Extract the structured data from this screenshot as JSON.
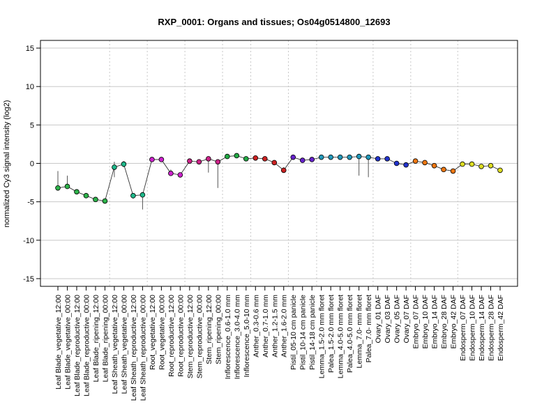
{
  "chart_data": {
    "type": "line",
    "title": "RXP_0001: Organs and tissues; Os04g0514800_12693",
    "ylabel": "normalized Cy3 signal intensity (log2)",
    "xlabel": "",
    "ylim": [
      -16,
      16
    ],
    "yticks": [
      -15,
      -10,
      -5,
      0,
      5,
      10,
      15
    ],
    "grid": true,
    "categories": [
      "Leaf Blade_vegetative_12:00",
      "Leaf Blade_vegetative_00:00",
      "Leaf Blade_reproductive_12:00",
      "Leaf Blade_reproductive_00:00",
      "Leaf Blade_ripening_12:00",
      "Leaf Blade_ripening_00:00",
      "Leaf Sheath_vegetative_12:00",
      "Leaf Sheath_vegetative_00:00",
      "Leaf Sheath_reproductive_12:00",
      "Leaf Sheath_reproductive_00:00",
      "Root_vegetative_12:00",
      "Root_vegetative_00:00",
      "Root_reproductive_12:00",
      "Root_reproductive_00:00",
      "Stem_reproductive_12:00",
      "Stem_reproductive_00:00",
      "Stem_ripening_12:00",
      "Stem_ripening_00:00",
      "Inflorescence_0.6-1.0 mm",
      "Inflorescence_3.0-4.0 mm",
      "Inflorescence_5.0-10 mm",
      "Anther_0.3-0.6 mm",
      "Anther_0.7-1.0 mm",
      "Anther_1.2-1.5 mm",
      "Anther_1.6-2.0 mm",
      "Pistil_05-10 cm panicle",
      "Pistil_10-14 cm panicle",
      "Pistil_14-18 cm panicle",
      "Lemma_1.5-2.0 mm floret",
      "Palea_1.5-2.0 mm floret",
      "Lemma_4.0-5.0 mm floret",
      "Palea_4.0-5.0 mm floret",
      "Lemma_7.0- mm floret",
      "Palea_7.0- mm floret",
      "Ovary_01 DAF",
      "Ovary_03 DAF",
      "Ovary_05 DAF",
      "Ovary_07 DAF",
      "Embryo_07 DAF",
      "Embryo_10 DAF",
      "Embryo_14 DAF",
      "Embryo_28 DAF",
      "Embryo_42 DAF",
      "Endosperm_07 DAF",
      "Endosperm_10 DAF",
      "Endosperm_14 DAF",
      "Endosperm_28 DAF",
      "Endosperm_42 DAF"
    ],
    "values": [
      -3.2,
      -3.0,
      -3.7,
      -4.2,
      -4.7,
      -4.9,
      -0.5,
      -0.1,
      -4.2,
      -4.1,
      0.5,
      0.5,
      -1.3,
      -1.5,
      0.3,
      0.2,
      0.6,
      0.2,
      0.9,
      1.0,
      0.6,
      0.7,
      0.6,
      0.1,
      -0.9,
      0.8,
      0.4,
      0.5,
      0.8,
      0.8,
      0.8,
      0.8,
      0.9,
      0.8,
      0.6,
      0.6,
      0.0,
      -0.2,
      0.3,
      0.1,
      -0.3,
      -0.8,
      -1.0,
      -0.1,
      -0.1,
      -0.4,
      -0.3,
      -0.9
    ],
    "err_low": [
      -1.0,
      -1.6,
      -3.7,
      -4.2,
      -4.7,
      -4.9,
      0.2,
      0.3,
      -4.2,
      -4.1,
      0.5,
      0.5,
      -0.8,
      -1.2,
      0.3,
      0.2,
      0.9,
      0.5,
      0.9,
      1.0,
      0.6,
      0.7,
      0.6,
      0.2,
      -0.5,
      0.9,
      0.4,
      0.5,
      0.9,
      0.9,
      0.8,
      0.8,
      0.9,
      0.9,
      0.6,
      0.6,
      0.0,
      -0.2,
      0.5,
      0.4,
      -0.3,
      -0.8,
      -1.0,
      -0.1,
      -0.1,
      -0.4,
      -0.2,
      -0.9
    ],
    "err_high": [
      -3.2,
      -3.0,
      -3.7,
      -4.2,
      -4.7,
      -4.9,
      -1.8,
      -0.5,
      -4.6,
      -6.0,
      0.5,
      0.5,
      -1.3,
      -1.5,
      0.3,
      0.2,
      -1.2,
      -3.2,
      0.9,
      1.0,
      0.6,
      0.7,
      0.6,
      0.1,
      -1.2,
      0.8,
      0.4,
      0.5,
      0.8,
      0.8,
      0.8,
      0.8,
      -1.6,
      -1.8,
      0.6,
      0.6,
      0.0,
      -0.2,
      0.3,
      0.1,
      -0.3,
      -0.8,
      -1.0,
      -0.1,
      -0.1,
      -0.4,
      -0.3,
      -0.9
    ],
    "group_colors": {
      "leaf_blade": "#2db34a",
      "leaf_sheath": "#1fb88a",
      "root": "#cc22cc",
      "stem": "#cc2288",
      "inflorescence": "#22aa44",
      "anther": "#cc2222",
      "pistil": "#6622cc",
      "lemma_palea": "#2299bb",
      "ovary": "#2233cc",
      "embryo": "#ee7711",
      "endosperm": "#dddd22"
    },
    "point_groups": [
      "leaf_blade",
      "leaf_blade",
      "leaf_blade",
      "leaf_blade",
      "leaf_blade",
      "leaf_blade",
      "leaf_sheath",
      "leaf_sheath",
      "leaf_sheath",
      "leaf_sheath",
      "root",
      "root",
      "root",
      "root",
      "stem",
      "stem",
      "stem",
      "stem",
      "inflorescence",
      "inflorescence",
      "inflorescence",
      "anther",
      "anther",
      "anther",
      "anther",
      "pistil",
      "pistil",
      "pistil",
      "lemma_palea",
      "lemma_palea",
      "lemma_palea",
      "lemma_palea",
      "lemma_palea",
      "lemma_palea",
      "ovary",
      "ovary",
      "ovary",
      "ovary",
      "embryo",
      "embryo",
      "embryo",
      "embryo",
      "embryo",
      "endosperm",
      "endosperm",
      "endosperm",
      "endosperm",
      "endosperm"
    ],
    "group_separators_after": [
      5,
      9,
      13,
      17,
      20,
      24,
      27,
      33,
      37,
      42
    ]
  }
}
